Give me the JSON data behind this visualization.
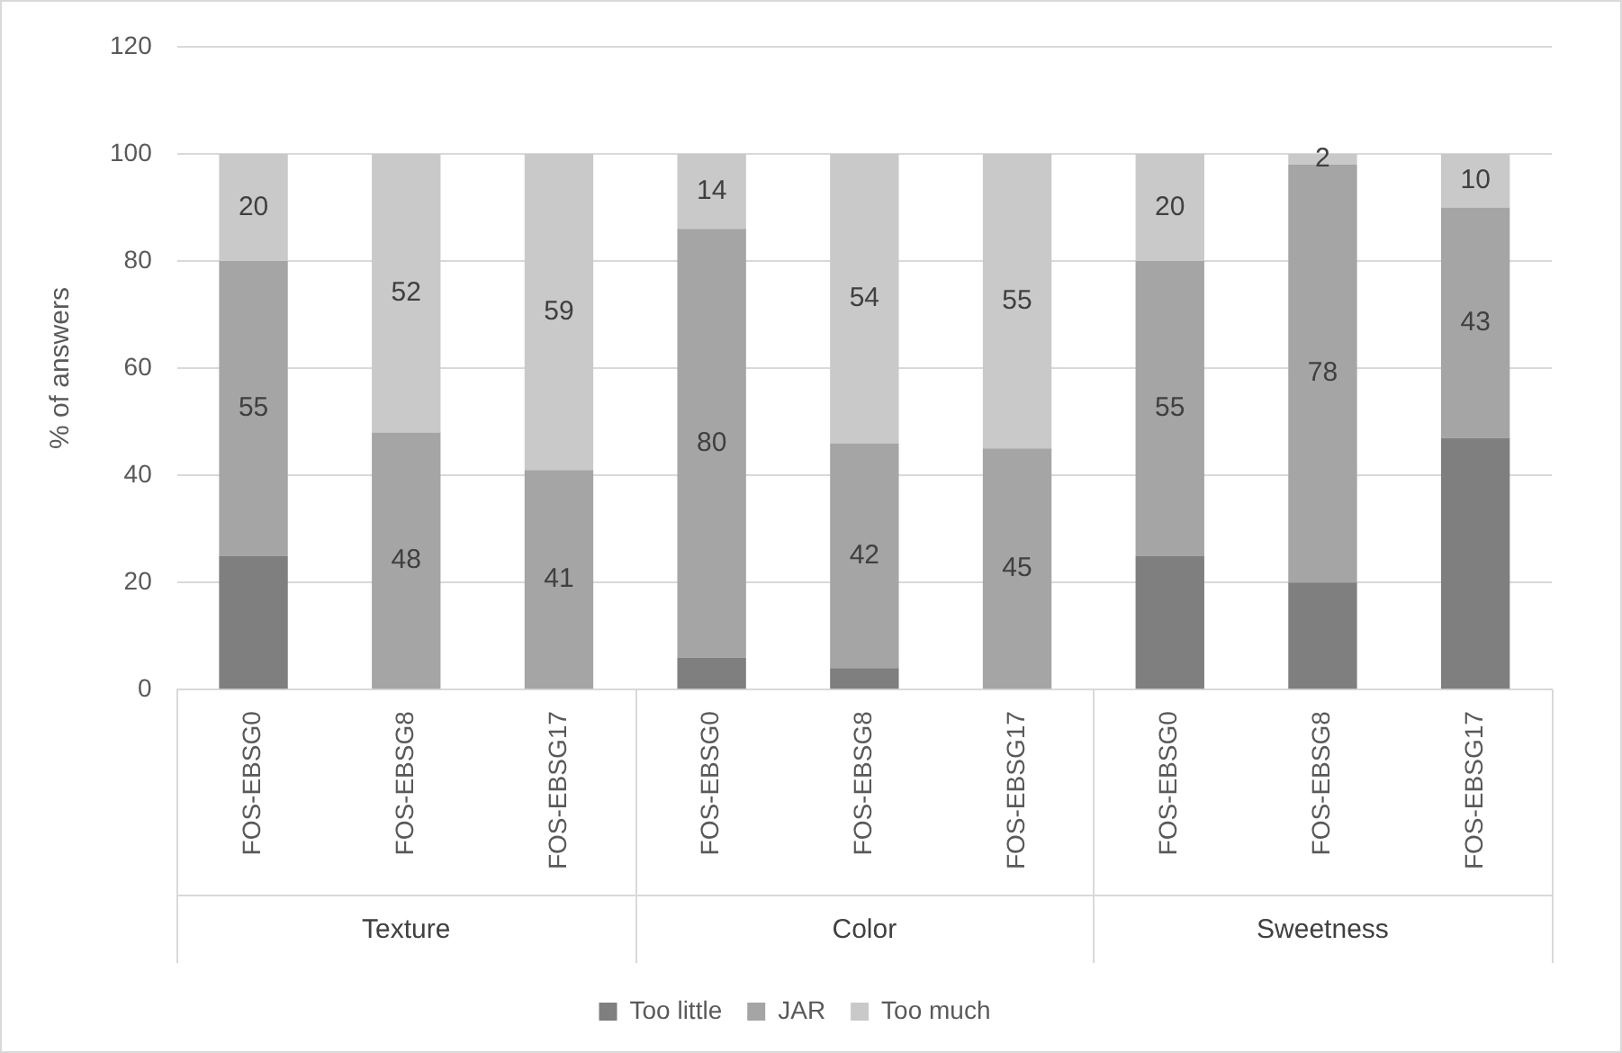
{
  "chart_data": {
    "type": "bar",
    "stacked": true,
    "ylabel": "% of answers",
    "categories": [
      "FOS-EBSG0",
      "FOS-EBSG8",
      "FOS-EBSG17",
      "FOS-EBSG0",
      "FOS-EBSG8",
      "FOS-EBSG17",
      "FOS-EBSG0",
      "FOS-EBSG8",
      "FOS-EBSG17"
    ],
    "annotations": [
      "Texture",
      "Color",
      "Sweetness"
    ],
    "series": [
      {
        "name": "Too little",
        "color": "#7f7f7f",
        "values": [
          25,
          0,
          0,
          6,
          4,
          0,
          25,
          20,
          47
        ]
      },
      {
        "name": "JAR",
        "color": "#a5a5a5",
        "values": [
          55,
          48,
          41,
          80,
          42,
          45,
          55,
          78,
          43
        ],
        "value_labels": [
          "55",
          "48",
          "41",
          "80",
          "42",
          "45",
          "55",
          "78",
          "43"
        ]
      },
      {
        "name": "Too much",
        "color": "#c9c9c9",
        "values": [
          20,
          52,
          59,
          14,
          54,
          55,
          20,
          2,
          10
        ],
        "value_labels": [
          "20",
          "52",
          "59",
          "14",
          "54",
          "55",
          "20",
          "2",
          "10"
        ]
      }
    ],
    "ylim": [
      0,
      120
    ],
    "yticks": [
      0,
      20,
      40,
      60,
      80,
      100,
      120
    ],
    "grid": "y",
    "legend": "bottom"
  }
}
